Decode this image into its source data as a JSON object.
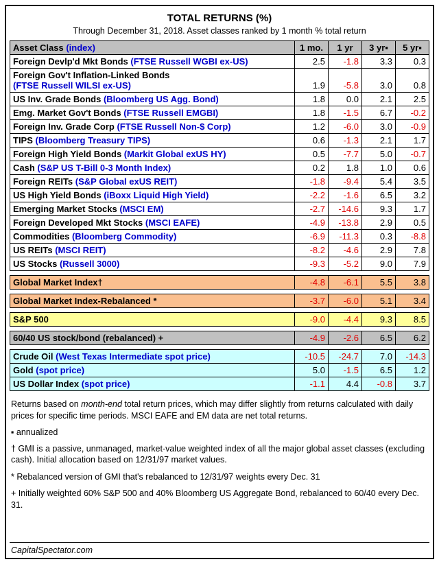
{
  "title": "TOTAL RETURNS (%)",
  "subtitle": "Through December 31, 2018. Asset classes ranked by 1 month % total return",
  "header": {
    "asset_class": "Asset Class",
    "index_label": "(index)",
    "cols": [
      "1 mo.",
      "1 yr",
      "3 yr▪",
      "5 yr▪"
    ]
  },
  "chart_data": {
    "type": "table",
    "title": "TOTAL RETURNS (%)",
    "subtitle": "Through December 31, 2018. Asset classes ranked by 1 month % total return",
    "columns": [
      "Asset Class (index)",
      "1 mo.",
      "1 yr",
      "3 yr▪",
      "5 yr▪"
    ],
    "rows": [
      {
        "name": "Foreign Devlp'd Mkt Bonds",
        "index": "(FTSE Russell WGBI ex-US)",
        "values": [
          "2.5",
          "-1.8",
          "3.3",
          "0.3"
        ]
      },
      {
        "name": "Foreign Gov't Inflation-Linked Bonds",
        "index": "(FTSE Russell WILSI ex-US)",
        "values": [
          "1.9",
          "-5.8",
          "3.0",
          "0.8"
        ],
        "two_line": true
      },
      {
        "name": "US Inv. Grade Bonds",
        "index": "(Bloomberg US Agg. Bond)",
        "values": [
          "1.8",
          "0.0",
          "2.1",
          "2.5"
        ]
      },
      {
        "name": "Emg. Market Gov't Bonds",
        "index": "(FTSE Russell EMGBI)",
        "values": [
          "1.8",
          "-1.5",
          "6.7",
          "-0.2"
        ]
      },
      {
        "name": "Foreign Inv. Grade Corp",
        "index": "(FTSE Russell Non-$ Corp)",
        "values": [
          "1.2",
          "-6.0",
          "3.0",
          "-0.9"
        ]
      },
      {
        "name": "TIPS",
        "index": "(Bloomberg Treasury TIPS)",
        "values": [
          "0.6",
          "-1.3",
          "2.1",
          "1.7"
        ]
      },
      {
        "name": "Foreign High Yield Bonds",
        "index": "(Markit Global exUS HY)",
        "values": [
          "0.5",
          "-7.7",
          "5.0",
          "-0.7"
        ]
      },
      {
        "name": "Cash",
        "index": "(S&P US T-Bill 0-3 Month Index)",
        "values": [
          "0.2",
          "1.8",
          "1.0",
          "0.6"
        ]
      },
      {
        "name": "Foreign REITs",
        "index": "(S&P Global exUS REIT)",
        "values": [
          "-1.8",
          "-9.4",
          "5.4",
          "3.5"
        ]
      },
      {
        "name": "US High Yield Bonds",
        "index": "(iBoxx Liquid High Yield)",
        "values": [
          "-2.2",
          "-1.6",
          "6.5",
          "3.2"
        ]
      },
      {
        "name": "Emerging Market Stocks",
        "index": "(MSCI EM)",
        "values": [
          "-2.7",
          "-14.6",
          "9.3",
          "1.7"
        ]
      },
      {
        "name": "Foreign Developed Mkt Stocks",
        "index": "(MSCI EAFE)",
        "values": [
          "-4.9",
          "-13.8",
          "2.9",
          "0.5"
        ]
      },
      {
        "name": "Commodities",
        "index": "(Bloomberg Commodity)",
        "values": [
          "-6.9",
          "-11.3",
          "0.3",
          "-8.8"
        ]
      },
      {
        "name": "US REITs",
        "index": "(MSCI REIT)",
        "values": [
          "-8.2",
          "-4.6",
          "2.9",
          "7.8"
        ]
      },
      {
        "name": "US Stocks",
        "index": "(Russell 3000)",
        "values": [
          "-9.3",
          "-5.2",
          "9.0",
          "7.9"
        ]
      },
      {
        "name": "Global Market Index†",
        "index": "",
        "values": [
          "-4.8",
          "-6.1",
          "5.5",
          "3.8"
        ],
        "style": "gmi",
        "gap_before": true
      },
      {
        "name": "Global Market Index-Rebalanced *",
        "index": "",
        "values": [
          "-3.7",
          "-6.0",
          "5.1",
          "3.4"
        ],
        "style": "gmi",
        "gap_before": true
      },
      {
        "name": "S&P 500",
        "index": "",
        "values": [
          "-9.0",
          "-4.4",
          "9.3",
          "8.5"
        ],
        "style": "sp500",
        "gap_before": true
      },
      {
        "name": "60/40 US stock/bond (rebalanced) +",
        "index": "",
        "values": [
          "-4.9",
          "-2.6",
          "6.5",
          "6.2"
        ],
        "style": "b6040",
        "gap_before": true
      },
      {
        "name": "Crude Oil",
        "index": "(West Texas Intermediate spot price)",
        "values": [
          "-10.5",
          "-24.7",
          "7.0",
          "-14.3"
        ],
        "style": "spot",
        "gap_before": true
      },
      {
        "name": "Gold",
        "index": "(spot price)",
        "values": [
          "5.0",
          "-1.5",
          "6.5",
          "1.2"
        ],
        "style": "spot"
      },
      {
        "name": "US Dollar Index",
        "index": "(spot price)",
        "values": [
          "-1.1",
          "4.4",
          "-0.8",
          "3.7"
        ],
        "style": "spot"
      }
    ]
  },
  "notes": {
    "method_1": "Returns based on ",
    "method_em": "month-end",
    "method_2": " total return prices, which may differ slightly from returns calculated with daily prices for specific time periods. MSCI EAFE and EM data are net total returns.",
    "annualized": "▪ annualized",
    "gmi": "† GMI is a passive, unmanaged, market-value weighted index of all the major global asset classes (excluding cash). Initial allocation based on 12/31/97 market values.",
    "rebalanced": "* Rebalanced version of GMI that's rebalanced to 12/31/97 weights every Dec. 31",
    "sixty_forty": "+ Initially weighted 60% S&P 500 and 40% Bloomberg US Aggregate Bond, rebalanced to 60/40 every Dec. 31."
  },
  "credit": "CapitalSpectator.com",
  "colors": {
    "negative": "#e00000",
    "index_blue": "#0000cc",
    "header_bg": "#c0c0c0",
    "gmi_bg": "#fabf8f",
    "sp500_bg": "#ffff99",
    "sixty_forty_bg": "#c0c0c0",
    "spot_bg": "#ccffff",
    "border": "#000000"
  }
}
